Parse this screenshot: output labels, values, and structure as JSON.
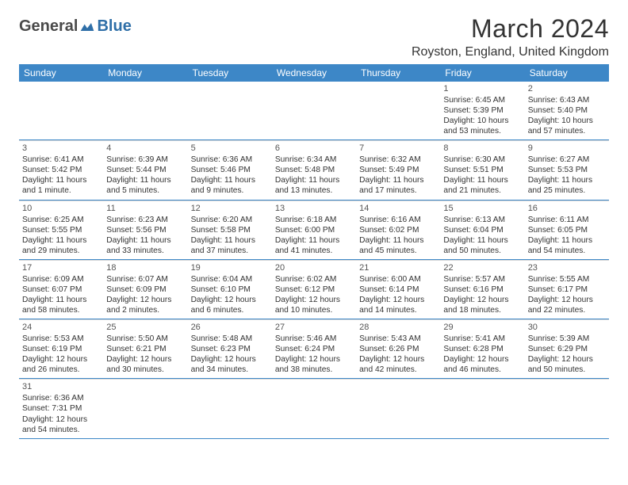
{
  "logo": {
    "part1": "General",
    "part2": "Blue",
    "mark_fill": "#2f6fa8"
  },
  "header": {
    "month_title": "March 2024",
    "location": "Royston, England, United Kingdom"
  },
  "colors": {
    "header_bar": "#3d87c7",
    "row_divider": "#3d87c7",
    "cell_divider": "#d9d9d9",
    "text": "#333333",
    "background": "#ffffff"
  },
  "days_of_week": [
    "Sunday",
    "Monday",
    "Tuesday",
    "Wednesday",
    "Thursday",
    "Friday",
    "Saturday"
  ],
  "calendar": {
    "leading_blanks": 5,
    "days": [
      {
        "n": 1,
        "sunrise": "6:45 AM",
        "sunset": "5:39 PM",
        "daylight": "10 hours and 53 minutes."
      },
      {
        "n": 2,
        "sunrise": "6:43 AM",
        "sunset": "5:40 PM",
        "daylight": "10 hours and 57 minutes."
      },
      {
        "n": 3,
        "sunrise": "6:41 AM",
        "sunset": "5:42 PM",
        "daylight": "11 hours and 1 minute."
      },
      {
        "n": 4,
        "sunrise": "6:39 AM",
        "sunset": "5:44 PM",
        "daylight": "11 hours and 5 minutes."
      },
      {
        "n": 5,
        "sunrise": "6:36 AM",
        "sunset": "5:46 PM",
        "daylight": "11 hours and 9 minutes."
      },
      {
        "n": 6,
        "sunrise": "6:34 AM",
        "sunset": "5:48 PM",
        "daylight": "11 hours and 13 minutes."
      },
      {
        "n": 7,
        "sunrise": "6:32 AM",
        "sunset": "5:49 PM",
        "daylight": "11 hours and 17 minutes."
      },
      {
        "n": 8,
        "sunrise": "6:30 AM",
        "sunset": "5:51 PM",
        "daylight": "11 hours and 21 minutes."
      },
      {
        "n": 9,
        "sunrise": "6:27 AM",
        "sunset": "5:53 PM",
        "daylight": "11 hours and 25 minutes."
      },
      {
        "n": 10,
        "sunrise": "6:25 AM",
        "sunset": "5:55 PM",
        "daylight": "11 hours and 29 minutes."
      },
      {
        "n": 11,
        "sunrise": "6:23 AM",
        "sunset": "5:56 PM",
        "daylight": "11 hours and 33 minutes."
      },
      {
        "n": 12,
        "sunrise": "6:20 AM",
        "sunset": "5:58 PM",
        "daylight": "11 hours and 37 minutes."
      },
      {
        "n": 13,
        "sunrise": "6:18 AM",
        "sunset": "6:00 PM",
        "daylight": "11 hours and 41 minutes."
      },
      {
        "n": 14,
        "sunrise": "6:16 AM",
        "sunset": "6:02 PM",
        "daylight": "11 hours and 45 minutes."
      },
      {
        "n": 15,
        "sunrise": "6:13 AM",
        "sunset": "6:04 PM",
        "daylight": "11 hours and 50 minutes."
      },
      {
        "n": 16,
        "sunrise": "6:11 AM",
        "sunset": "6:05 PM",
        "daylight": "11 hours and 54 minutes."
      },
      {
        "n": 17,
        "sunrise": "6:09 AM",
        "sunset": "6:07 PM",
        "daylight": "11 hours and 58 minutes."
      },
      {
        "n": 18,
        "sunrise": "6:07 AM",
        "sunset": "6:09 PM",
        "daylight": "12 hours and 2 minutes."
      },
      {
        "n": 19,
        "sunrise": "6:04 AM",
        "sunset": "6:10 PM",
        "daylight": "12 hours and 6 minutes."
      },
      {
        "n": 20,
        "sunrise": "6:02 AM",
        "sunset": "6:12 PM",
        "daylight": "12 hours and 10 minutes."
      },
      {
        "n": 21,
        "sunrise": "6:00 AM",
        "sunset": "6:14 PM",
        "daylight": "12 hours and 14 minutes."
      },
      {
        "n": 22,
        "sunrise": "5:57 AM",
        "sunset": "6:16 PM",
        "daylight": "12 hours and 18 minutes."
      },
      {
        "n": 23,
        "sunrise": "5:55 AM",
        "sunset": "6:17 PM",
        "daylight": "12 hours and 22 minutes."
      },
      {
        "n": 24,
        "sunrise": "5:53 AM",
        "sunset": "6:19 PM",
        "daylight": "12 hours and 26 minutes."
      },
      {
        "n": 25,
        "sunrise": "5:50 AM",
        "sunset": "6:21 PM",
        "daylight": "12 hours and 30 minutes."
      },
      {
        "n": 26,
        "sunrise": "5:48 AM",
        "sunset": "6:23 PM",
        "daylight": "12 hours and 34 minutes."
      },
      {
        "n": 27,
        "sunrise": "5:46 AM",
        "sunset": "6:24 PM",
        "daylight": "12 hours and 38 minutes."
      },
      {
        "n": 28,
        "sunrise": "5:43 AM",
        "sunset": "6:26 PM",
        "daylight": "12 hours and 42 minutes."
      },
      {
        "n": 29,
        "sunrise": "5:41 AM",
        "sunset": "6:28 PM",
        "daylight": "12 hours and 46 minutes."
      },
      {
        "n": 30,
        "sunrise": "5:39 AM",
        "sunset": "6:29 PM",
        "daylight": "12 hours and 50 minutes."
      },
      {
        "n": 31,
        "sunrise": "6:36 AM",
        "sunset": "7:31 PM",
        "daylight": "12 hours and 54 minutes."
      }
    ]
  },
  "labels": {
    "sunrise_prefix": "Sunrise: ",
    "sunset_prefix": "Sunset: ",
    "daylight_prefix": "Daylight: "
  }
}
